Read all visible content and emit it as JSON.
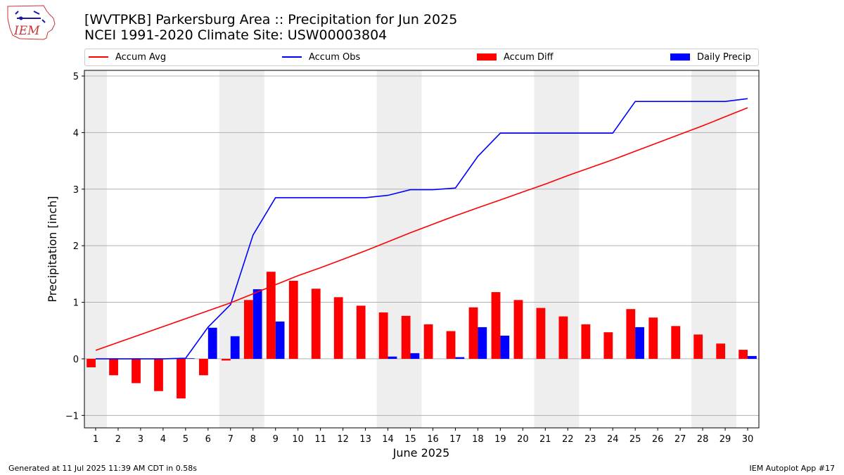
{
  "header": {
    "title_line1": "[WVTPKB] Parkersburg Area :: Precipitation for Jun 2025",
    "title_line2": "NCEI 1991-2020 Climate Site: USW00003804"
  },
  "logo": {
    "icon": "iem-logo",
    "text": "IEM"
  },
  "footer": {
    "left": "Generated at 11 Jul 2025 11:39 AM CDT in 0.58s",
    "right": "IEM Autoplot App #17"
  },
  "colors": {
    "avg": "#ff0000",
    "obs": "#0000ff",
    "diff": "#ff0000",
    "daily": "#0000ff",
    "shade": "#eeeeee",
    "grid": "#b0b0b0"
  },
  "chart_data": {
    "type": "bar",
    "xlabel": "June 2025",
    "ylabel": "Precipitation [inch]",
    "ylim": [
      -1.22,
      5.1
    ],
    "yticks": [
      -1,
      0,
      1,
      2,
      3,
      4,
      5
    ],
    "grid": true,
    "legend_position": "top",
    "legend": [
      "Accum Avg",
      "Accum Obs",
      "Accum Diff",
      "Daily Precip"
    ],
    "weekend_shading": [
      [
        0.5,
        1.5
      ],
      [
        6.5,
        8.5
      ],
      [
        13.5,
        15.5
      ],
      [
        20.5,
        22.5
      ],
      [
        27.5,
        29.5
      ]
    ],
    "categories": [
      "1",
      "2",
      "3",
      "4",
      "5",
      "6",
      "7",
      "8",
      "9",
      "10",
      "11",
      "12",
      "13",
      "14",
      "15",
      "16",
      "17",
      "18",
      "19",
      "20",
      "21",
      "22",
      "23",
      "24",
      "25",
      "26",
      "27",
      "28",
      "29",
      "30"
    ],
    "series": [
      {
        "name": "Accum Avg",
        "type": "line",
        "values": [
          0.15,
          0.29,
          0.43,
          0.57,
          0.71,
          0.85,
          0.99,
          1.15,
          1.31,
          1.47,
          1.61,
          1.76,
          1.91,
          2.07,
          2.23,
          2.38,
          2.53,
          2.67,
          2.81,
          2.95,
          3.09,
          3.24,
          3.38,
          3.52,
          3.67,
          3.82,
          3.97,
          4.12,
          4.28,
          4.44
        ]
      },
      {
        "name": "Accum Obs",
        "type": "line",
        "values": [
          0.0,
          0.0,
          0.0,
          0.0,
          0.01,
          0.56,
          0.96,
          2.19,
          2.85,
          2.85,
          2.85,
          2.85,
          2.85,
          2.89,
          2.99,
          2.99,
          3.02,
          3.58,
          3.99,
          3.99,
          3.99,
          3.99,
          3.99,
          3.99,
          4.55,
          4.55,
          4.55,
          4.55,
          4.55,
          4.6
        ]
      },
      {
        "name": "Accum Diff",
        "type": "bar",
        "values": [
          -0.15,
          -0.29,
          -0.43,
          -0.57,
          -0.7,
          -0.29,
          -0.03,
          1.04,
          1.54,
          1.38,
          1.24,
          1.09,
          0.94,
          0.82,
          0.76,
          0.61,
          0.49,
          0.91,
          1.18,
          1.04,
          0.9,
          0.75,
          0.61,
          0.47,
          0.88,
          0.73,
          0.58,
          0.43,
          0.27,
          0.16
        ]
      },
      {
        "name": "Daily Precip",
        "type": "bar",
        "values": [
          0,
          0,
          0,
          0,
          0.01,
          0.55,
          0.4,
          1.23,
          0.66,
          0,
          0,
          0,
          0,
          0.04,
          0.1,
          0,
          0.03,
          0.56,
          0.41,
          0,
          0,
          0,
          0,
          0,
          0.56,
          0,
          0,
          0,
          0,
          0.05
        ]
      }
    ]
  }
}
